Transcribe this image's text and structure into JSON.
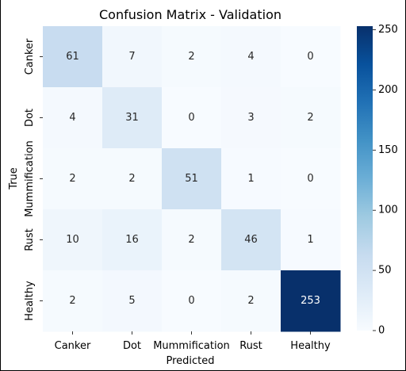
{
  "chart_data": {
    "type": "heatmap",
    "title": "Confusion Matrix - Validation",
    "xlabel": "Predicted",
    "ylabel": "True",
    "x_categories": [
      "Canker",
      "Dot",
      "Mummification",
      "Rust",
      "Healthy"
    ],
    "y_categories": [
      "Canker",
      "Dot",
      "Mummification",
      "Rust",
      "Healthy"
    ],
    "values": [
      [
        61,
        7,
        2,
        4,
        0
      ],
      [
        4,
        31,
        0,
        3,
        2
      ],
      [
        2,
        2,
        51,
        1,
        0
      ],
      [
        10,
        16,
        2,
        46,
        1
      ],
      [
        2,
        5,
        0,
        2,
        253
      ]
    ],
    "colormap": "Blues",
    "vmin": 0,
    "vmax": 253,
    "colorbar_ticks": [
      0,
      50,
      100,
      150,
      200,
      250
    ]
  }
}
